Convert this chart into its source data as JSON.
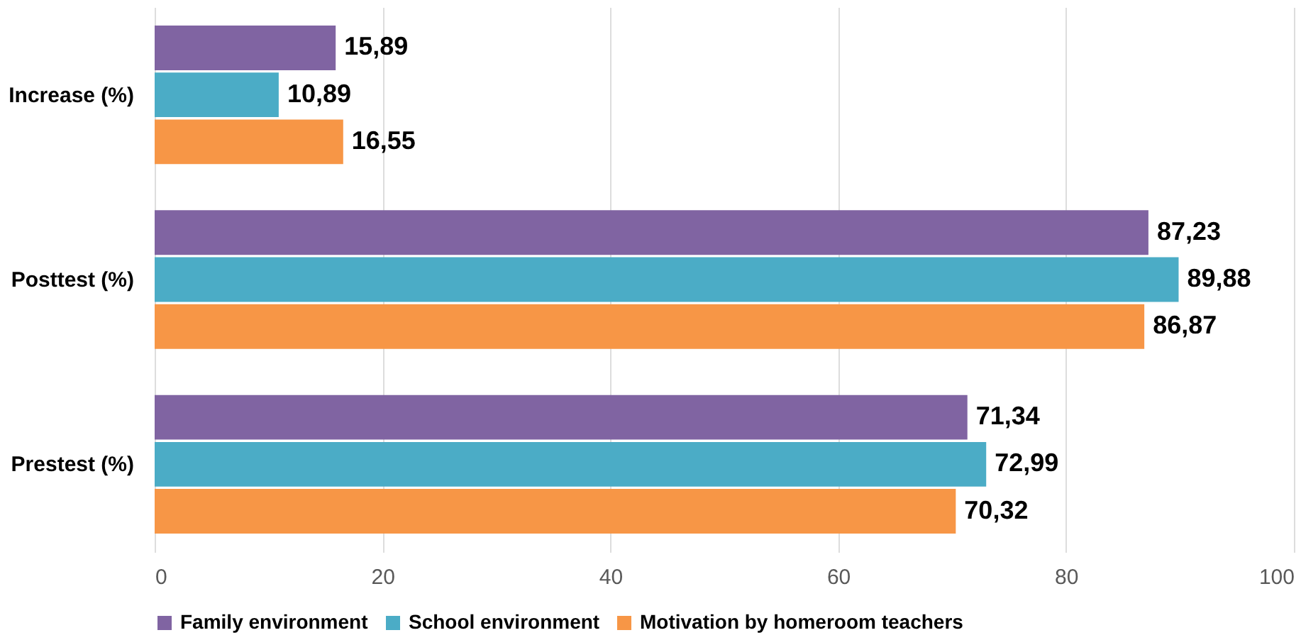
{
  "chart_data": {
    "type": "bar",
    "orientation": "horizontal",
    "categories": [
      "Increase (%)",
      "Posttest (%)",
      "Prestest (%)"
    ],
    "series": [
      {
        "name": "Family environment",
        "color": "#8064a2",
        "values": [
          15.89,
          87.23,
          71.34
        ],
        "value_labels": [
          "15,89",
          "87,23",
          "71,34"
        ]
      },
      {
        "name": "School environment",
        "color": "#4bacc6",
        "values": [
          10.89,
          89.88,
          72.99
        ],
        "value_labels": [
          "10,89",
          "89,88",
          "72,99"
        ]
      },
      {
        "name": "Motivation by homeroom teachers",
        "color": "#f79646",
        "values": [
          16.55,
          86.87,
          70.32
        ],
        "value_labels": [
          "16,55",
          "86,87",
          "70,32"
        ]
      }
    ],
    "xlim": [
      0,
      100
    ],
    "xticks": [
      0,
      20,
      40,
      60,
      80,
      100
    ],
    "grid": "x",
    "legend": "bottom"
  }
}
